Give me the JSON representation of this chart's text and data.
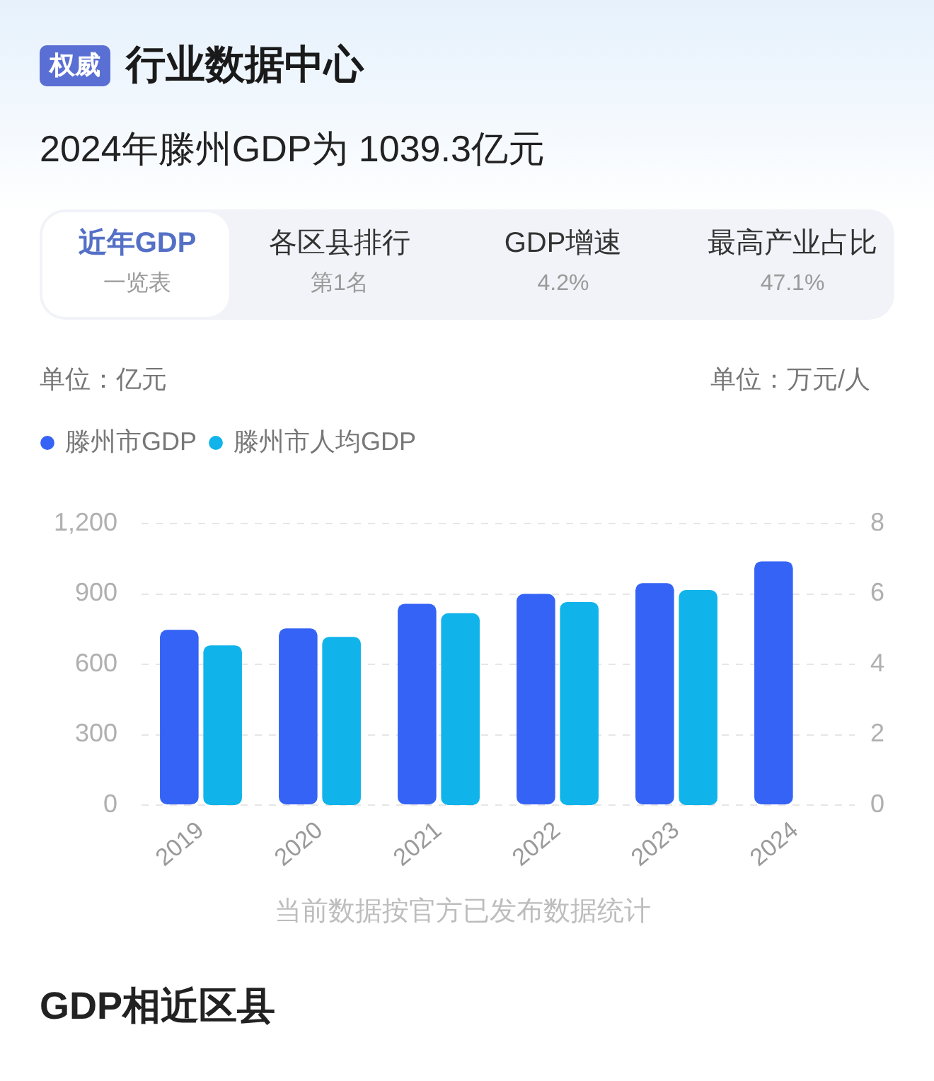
{
  "chart_data": {
    "type": "bar",
    "title": "行业数据中心",
    "subtitle": "2024年滕州GDP为 1039.3亿元",
    "ylabel": "单位：亿元",
    "y2label": "单位：万元/人",
    "categories": [
      "2019",
      "2020",
      "2021",
      "2022",
      "2023",
      "2024"
    ],
    "series": [
      {
        "name": "滕州市GDP",
        "color": "#3563f5",
        "values": [
          747,
          753,
          858,
          900,
          946,
          1039
        ]
      },
      {
        "name": "滕州市人均GDP",
        "color": "#10b4ea",
        "axis": "y2",
        "values": [
          4.54,
          4.78,
          5.45,
          5.77,
          6.11,
          null
        ]
      }
    ],
    "ylim": [
      0,
      1200
    ],
    "yticks": [
      0,
      300,
      600,
      900,
      {
        "value": 1200,
        "label": "1,200"
      }
    ],
    "y2lim": [
      0,
      8
    ],
    "y2ticks": [
      0,
      2,
      4,
      6,
      8
    ],
    "grid": "y",
    "legend": "top left",
    "annotations": [
      "权威",
      "近年GDP",
      "一览表",
      "各区县排行",
      "第1名",
      "GDP增速",
      "4.2%",
      "最高产业占比",
      "47.1%",
      "当前数据按官方已发布数据统计",
      "GDP相近区县"
    ]
  }
}
